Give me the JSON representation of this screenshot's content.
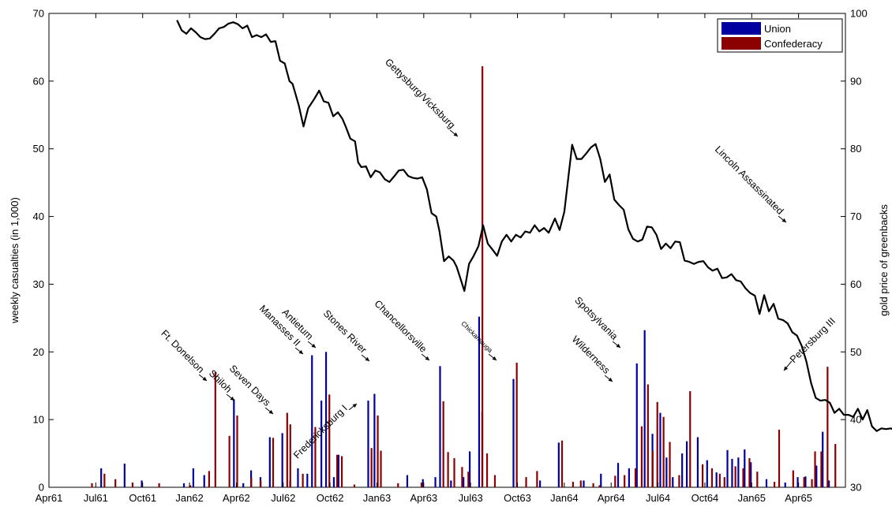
{
  "chart_data": {
    "type": "bar",
    "ylabel_left": "weekly casualties (in 1,000)",
    "ylabel_right": "gold price of greenbacks",
    "ylim_left": [
      0,
      70
    ],
    "ylim_right": [
      30,
      100
    ],
    "yticks_left": [
      "0",
      "10",
      "20",
      "30",
      "40",
      "50",
      "60",
      "70"
    ],
    "yticks_right": [
      "30",
      "40",
      "50",
      "60",
      "70",
      "80",
      "90",
      "100"
    ],
    "x_range_months": [
      0,
      51
    ],
    "xtick_labels": [
      "Apr61",
      "Jul61",
      "Oct61",
      "Jan62",
      "Apr62",
      "Jul62",
      "Oct62",
      "Jan63",
      "Apr63",
      "Jul63",
      "Oct63",
      "Jan64",
      "Apr64",
      "Jul64",
      "Oct64",
      "Jan65",
      "Apr65"
    ],
    "legend": {
      "position": "top-right",
      "colors": {
        "union": "#0000a0",
        "confederacy": "#8b0000"
      }
    },
    "series": [
      {
        "name": "Union",
        "color": "#0000a0",
        "points": [
          [
            3.4,
            2.8
          ],
          [
            4.9,
            3.5
          ],
          [
            6.0,
            1.0
          ],
          [
            8.7,
            0.6
          ],
          [
            9.3,
            2.8
          ],
          [
            10.0,
            1.8
          ],
          [
            11.9,
            13.0
          ],
          [
            12.5,
            0.6
          ],
          [
            13.0,
            2.5
          ],
          [
            13.6,
            1.5
          ],
          [
            14.2,
            7.4
          ],
          [
            15.0,
            8.0
          ],
          [
            15.5,
            1.0
          ],
          [
            16.0,
            2.8
          ],
          [
            16.6,
            2.0
          ],
          [
            16.9,
            19.5
          ],
          [
            17.5,
            12.8
          ],
          [
            17.8,
            20.0
          ],
          [
            18.3,
            1.5
          ],
          [
            18.6,
            4.8
          ],
          [
            20.5,
            12.8
          ],
          [
            20.9,
            13.8
          ],
          [
            23.0,
            1.8
          ],
          [
            24.0,
            1.2
          ],
          [
            24.8,
            1.5
          ],
          [
            25.1,
            17.9
          ],
          [
            25.8,
            1.0
          ],
          [
            26.6,
            1.5
          ],
          [
            27.0,
            5.3
          ],
          [
            27.6,
            25.2
          ],
          [
            27.8,
            11.2
          ],
          [
            29.8,
            16.0
          ],
          [
            31.5,
            1.0
          ],
          [
            32.7,
            6.6
          ],
          [
            34.3,
            1.0
          ],
          [
            35.4,
            2.0
          ],
          [
            36.5,
            3.6
          ],
          [
            37.2,
            2.8
          ],
          [
            37.7,
            18.3
          ],
          [
            38.2,
            23.2
          ],
          [
            38.7,
            7.9
          ],
          [
            39.2,
            11.0
          ],
          [
            39.6,
            4.4
          ],
          [
            40.0,
            1.5
          ],
          [
            40.6,
            5.0
          ],
          [
            40.9,
            6.8
          ],
          [
            41.6,
            7.4
          ],
          [
            42.2,
            4.0
          ],
          [
            42.8,
            2.2
          ],
          [
            43.5,
            5.5
          ],
          [
            43.8,
            4.2
          ],
          [
            44.2,
            4.4
          ],
          [
            44.6,
            5.6
          ],
          [
            45.0,
            3.7
          ],
          [
            46.0,
            1.2
          ],
          [
            47.2,
            0.7
          ],
          [
            48.0,
            1.5
          ],
          [
            48.5,
            1.6
          ],
          [
            49.2,
            3.2
          ],
          [
            49.6,
            8.2
          ],
          [
            50.0,
            1.0
          ]
        ]
      },
      {
        "name": "Confederacy",
        "color": "#8b0000",
        "points": [
          [
            2.7,
            0.6
          ],
          [
            3.5,
            2.0
          ],
          [
            4.2,
            1.2
          ],
          [
            5.3,
            0.7
          ],
          [
            7.0,
            0.6
          ],
          [
            9.0,
            0.3
          ],
          [
            10.2,
            2.4
          ],
          [
            10.6,
            17.0
          ],
          [
            11.5,
            7.6
          ],
          [
            12.0,
            10.6
          ],
          [
            12.9,
            1.4
          ],
          [
            13.5,
            1.0
          ],
          [
            14.3,
            7.3
          ],
          [
            15.2,
            11.0
          ],
          [
            15.4,
            9.3
          ],
          [
            16.2,
            2.0
          ],
          [
            17.0,
            8.9
          ],
          [
            17.9,
            13.7
          ],
          [
            18.4,
            4.8
          ],
          [
            18.7,
            4.6
          ],
          [
            19.5,
            0.4
          ],
          [
            20.6,
            5.8
          ],
          [
            21.0,
            10.6
          ],
          [
            21.2,
            5.4
          ],
          [
            22.3,
            0.6
          ],
          [
            23.8,
            0.7
          ],
          [
            25.2,
            12.7
          ],
          [
            25.5,
            5.2
          ],
          [
            25.9,
            4.3
          ],
          [
            26.4,
            3.0
          ],
          [
            26.8,
            2.3
          ],
          [
            27.7,
            62.2
          ],
          [
            28.0,
            5.0
          ],
          [
            28.5,
            1.8
          ],
          [
            29.9,
            18.4
          ],
          [
            30.5,
            1.5
          ],
          [
            31.2,
            2.4
          ],
          [
            32.8,
            6.9
          ],
          [
            33.5,
            0.8
          ],
          [
            34.0,
            1.0
          ],
          [
            34.8,
            0.6
          ],
          [
            35.2,
            0.3
          ],
          [
            36.2,
            1.7
          ],
          [
            36.8,
            1.8
          ],
          [
            37.5,
            2.8
          ],
          [
            37.9,
            9.0
          ],
          [
            38.3,
            15.2
          ],
          [
            38.6,
            5.4
          ],
          [
            38.9,
            12.6
          ],
          [
            39.3,
            10.4
          ],
          [
            39.7,
            6.7
          ],
          [
            40.3,
            1.8
          ],
          [
            41.0,
            14.2
          ],
          [
            41.8,
            3.4
          ],
          [
            42.4,
            2.8
          ],
          [
            42.9,
            2.0
          ],
          [
            43.2,
            1.5
          ],
          [
            43.9,
            3.1
          ],
          [
            44.4,
            2.8
          ],
          [
            44.8,
            4.3
          ],
          [
            45.3,
            2.3
          ],
          [
            46.4,
            0.8
          ],
          [
            46.7,
            8.5
          ],
          [
            47.6,
            2.5
          ],
          [
            48.3,
            1.5
          ],
          [
            48.8,
            1.2
          ],
          [
            49.0,
            5.3
          ],
          [
            49.4,
            5.3
          ],
          [
            49.8,
            17.8
          ],
          [
            50.3,
            6.4
          ]
        ]
      },
      {
        "name": "",
        "role": "gold price line (right axis)",
        "color": "#000000",
        "points": [
          [
            8.2,
            99.0
          ],
          [
            8.5,
            97.5
          ],
          [
            8.8,
            97.0
          ],
          [
            9.1,
            97.8
          ],
          [
            9.4,
            97.2
          ],
          [
            9.7,
            96.5
          ],
          [
            10.0,
            96.2
          ],
          [
            10.3,
            96.3
          ],
          [
            10.6,
            97.0
          ],
          [
            10.9,
            97.8
          ],
          [
            11.2,
            98.0
          ],
          [
            11.5,
            98.5
          ],
          [
            11.8,
            98.7
          ],
          [
            12.1,
            98.4
          ],
          [
            12.4,
            97.8
          ],
          [
            12.7,
            98.2
          ],
          [
            13.0,
            96.5
          ],
          [
            13.3,
            96.8
          ],
          [
            13.6,
            96.5
          ],
          [
            13.9,
            96.9
          ],
          [
            14.2,
            95.8
          ],
          [
            14.5,
            95.9
          ],
          [
            14.8,
            93.0
          ],
          [
            15.1,
            92.6
          ],
          [
            15.4,
            90.0
          ],
          [
            15.6,
            89.6
          ],
          [
            15.8,
            88.0
          ],
          [
            16.0,
            86.4
          ],
          [
            16.3,
            83.3
          ],
          [
            16.6,
            86.0
          ],
          [
            17.0,
            87.4
          ],
          [
            17.3,
            88.6
          ],
          [
            17.6,
            87.0
          ],
          [
            17.9,
            86.8
          ],
          [
            18.2,
            84.8
          ],
          [
            18.5,
            85.4
          ],
          [
            18.8,
            84.4
          ],
          [
            19.0,
            83.3
          ],
          [
            19.3,
            81.5
          ],
          [
            19.6,
            81.1
          ],
          [
            19.8,
            78.0
          ],
          [
            20.0,
            77.3
          ],
          [
            20.3,
            77.4
          ],
          [
            20.6,
            75.8
          ],
          [
            20.9,
            76.8
          ],
          [
            21.2,
            76.5
          ],
          [
            21.5,
            75.5
          ],
          [
            21.8,
            75.1
          ],
          [
            22.1,
            75.9
          ],
          [
            22.4,
            76.8
          ],
          [
            22.7,
            76.9
          ],
          [
            23.0,
            76.0
          ],
          [
            23.3,
            75.7
          ],
          [
            23.6,
            75.6
          ],
          [
            23.9,
            75.8
          ],
          [
            24.2,
            74.0
          ],
          [
            24.5,
            70.5
          ],
          [
            24.8,
            70.0
          ],
          [
            25.0,
            67.9
          ],
          [
            25.3,
            63.4
          ],
          [
            25.6,
            64.1
          ],
          [
            25.9,
            63.5
          ],
          [
            26.1,
            62.6
          ],
          [
            26.3,
            61.2
          ],
          [
            26.6,
            59.0
          ],
          [
            26.9,
            63.0
          ],
          [
            27.2,
            64.2
          ],
          [
            27.5,
            65.6
          ],
          [
            27.8,
            68.7
          ],
          [
            28.1,
            66.0
          ],
          [
            28.4,
            65.1
          ],
          [
            28.7,
            64.2
          ],
          [
            29.0,
            66.3
          ],
          [
            29.3,
            67.3
          ],
          [
            29.6,
            66.3
          ],
          [
            29.9,
            67.3
          ],
          [
            30.2,
            66.9
          ],
          [
            30.5,
            67.8
          ],
          [
            30.8,
            67.6
          ],
          [
            31.1,
            68.7
          ],
          [
            31.4,
            67.8
          ],
          [
            31.7,
            68.3
          ],
          [
            32.0,
            67.6
          ],
          [
            32.4,
            69.7
          ],
          [
            32.7,
            68.0
          ],
          [
            33.0,
            70.7
          ],
          [
            33.5,
            80.6
          ],
          [
            33.8,
            78.5
          ],
          [
            34.1,
            78.5
          ],
          [
            34.4,
            79.3
          ],
          [
            34.7,
            80.2
          ],
          [
            35.0,
            80.7
          ],
          [
            35.3,
            78.5
          ],
          [
            35.6,
            75.1
          ],
          [
            35.9,
            76.2
          ],
          [
            36.2,
            72.5
          ],
          [
            36.5,
            71.7
          ],
          [
            36.8,
            71.0
          ],
          [
            37.1,
            68.1
          ],
          [
            37.4,
            66.7
          ],
          [
            37.7,
            66.3
          ],
          [
            38.0,
            66.6
          ],
          [
            38.3,
            68.5
          ],
          [
            38.6,
            68.4
          ],
          [
            38.9,
            67.3
          ],
          [
            39.2,
            65.2
          ],
          [
            39.5,
            66.0
          ],
          [
            39.8,
            65.3
          ],
          [
            40.1,
            66.3
          ],
          [
            40.4,
            66.2
          ],
          [
            40.7,
            63.5
          ],
          [
            41.0,
            63.3
          ],
          [
            41.3,
            63.0
          ],
          [
            41.6,
            63.3
          ],
          [
            41.9,
            63.4
          ],
          [
            42.2,
            62.5
          ],
          [
            42.5,
            62.0
          ],
          [
            42.8,
            62.3
          ],
          [
            43.1,
            60.9
          ],
          [
            43.4,
            61.0
          ],
          [
            43.7,
            61.5
          ],
          [
            44.0,
            60.6
          ],
          [
            44.3,
            60.4
          ],
          [
            44.6,
            59.4
          ],
          [
            44.9,
            58.7
          ],
          [
            45.2,
            58.3
          ],
          [
            45.5,
            55.6
          ],
          [
            45.8,
            58.4
          ],
          [
            46.1,
            56.0
          ],
          [
            46.4,
            57.1
          ],
          [
            46.7,
            54.9
          ],
          [
            47.0,
            54.7
          ],
          [
            47.3,
            54.2
          ],
          [
            47.6,
            52.9
          ],
          [
            47.9,
            52.4
          ],
          [
            48.2,
            50.9
          ],
          [
            48.5,
            48.6
          ],
          [
            48.8,
            45.4
          ],
          [
            49.1,
            43.2
          ],
          [
            49.4,
            42.8
          ],
          [
            49.7,
            42.9
          ],
          [
            50.0,
            42.5
          ],
          [
            50.3,
            41.0
          ],
          [
            50.6,
            41.6
          ],
          [
            50.9,
            40.7
          ],
          [
            51.2,
            40.7
          ],
          [
            51.5,
            40.4
          ],
          [
            51.8,
            41.6
          ],
          [
            52.1,
            40.0
          ],
          [
            52.4,
            41.4
          ],
          [
            52.7,
            39.0
          ],
          [
            53.0,
            38.3
          ],
          [
            53.3,
            38.7
          ],
          [
            53.6,
            38.6
          ],
          [
            53.9,
            38.7
          ],
          [
            54.2,
            38.4
          ],
          [
            54.5,
            39.5
          ]
        ]
      }
    ],
    "annotations": [
      {
        "text": "Ft. Donelson"
      },
      {
        "text": "Shiloh"
      },
      {
        "text": "Seven Days"
      },
      {
        "text": "Manasses II"
      },
      {
        "text": "Antietum"
      },
      {
        "text": "Fredericksburg I"
      },
      {
        "text": "Stones River"
      },
      {
        "text": "Chancellorsville"
      },
      {
        "text": "Gettysburg/Vicksburg"
      },
      {
        "text": "Chickamauga"
      },
      {
        "text": "Wilderness"
      },
      {
        "text": "Spotsylvania"
      },
      {
        "text": "Lincoln Assassinated"
      },
      {
        "text": "Petersburg III"
      }
    ]
  }
}
